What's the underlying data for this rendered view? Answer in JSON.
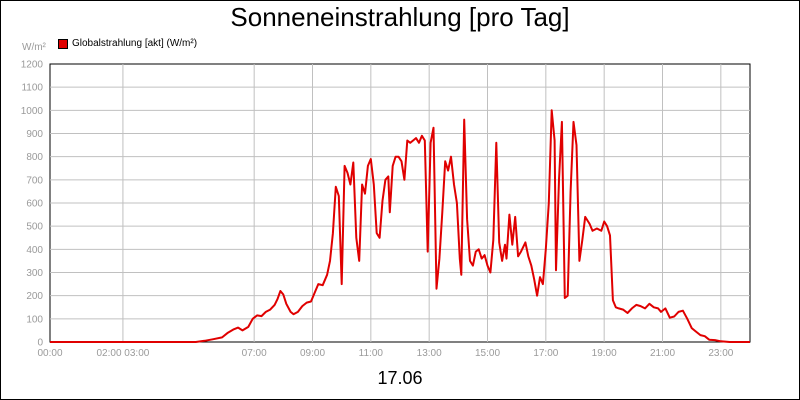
{
  "chart_data": {
    "type": "line",
    "title": "Sonneneinstrahlung [pro Tag]",
    "ylabel": "W/m²",
    "xlabel": "17.06",
    "ylim": [
      0,
      1200
    ],
    "xlim": [
      0,
      24
    ],
    "yticks": [
      0,
      100,
      200,
      300,
      400,
      500,
      600,
      700,
      800,
      900,
      1000,
      1100,
      1200
    ],
    "xticks": [
      {
        "h": 0,
        "label": "00:00"
      },
      {
        "h": 2.5,
        "label": "02:00 03:00"
      },
      {
        "h": 7,
        "label": "07:00"
      },
      {
        "h": 9,
        "label": "09:00"
      },
      {
        "h": 11,
        "label": "11:00"
      },
      {
        "h": 13,
        "label": "13:00"
      },
      {
        "h": 15,
        "label": "15:00"
      },
      {
        "h": 17,
        "label": "17:00"
      },
      {
        "h": 19,
        "label": "19:00"
      },
      {
        "h": 21,
        "label": "21:00"
      },
      {
        "h": 23,
        "label": "23:00"
      }
    ],
    "grid": true,
    "legend_position": "top-left",
    "series": [
      {
        "name": "Globalstrahlung [akt] (W/m²)",
        "color": "#e00000",
        "points": [
          [
            0,
            0
          ],
          [
            5.0,
            0
          ],
          [
            5.3,
            5
          ],
          [
            5.6,
            12
          ],
          [
            5.9,
            20
          ],
          [
            6.1,
            40
          ],
          [
            6.3,
            55
          ],
          [
            6.45,
            62
          ],
          [
            6.6,
            50
          ],
          [
            6.8,
            65
          ],
          [
            6.95,
            100
          ],
          [
            7.1,
            115
          ],
          [
            7.25,
            112
          ],
          [
            7.4,
            130
          ],
          [
            7.55,
            140
          ],
          [
            7.7,
            160
          ],
          [
            7.8,
            185
          ],
          [
            7.9,
            220
          ],
          [
            8.0,
            205
          ],
          [
            8.1,
            165
          ],
          [
            8.25,
            130
          ],
          [
            8.35,
            120
          ],
          [
            8.5,
            130
          ],
          [
            8.65,
            155
          ],
          [
            8.8,
            170
          ],
          [
            8.95,
            175
          ],
          [
            9.1,
            220
          ],
          [
            9.2,
            250
          ],
          [
            9.35,
            245
          ],
          [
            9.5,
            290
          ],
          [
            9.6,
            350
          ],
          [
            9.7,
            470
          ],
          [
            9.8,
            670
          ],
          [
            9.9,
            630
          ],
          [
            10.0,
            250
          ],
          [
            10.1,
            760
          ],
          [
            10.2,
            730
          ],
          [
            10.3,
            680
          ],
          [
            10.4,
            775
          ],
          [
            10.5,
            450
          ],
          [
            10.6,
            350
          ],
          [
            10.7,
            680
          ],
          [
            10.8,
            640
          ],
          [
            10.9,
            760
          ],
          [
            11.0,
            790
          ],
          [
            11.1,
            680
          ],
          [
            11.2,
            470
          ],
          [
            11.3,
            450
          ],
          [
            11.4,
            610
          ],
          [
            11.5,
            700
          ],
          [
            11.6,
            715
          ],
          [
            11.65,
            560
          ],
          [
            11.75,
            760
          ],
          [
            11.85,
            800
          ],
          [
            11.95,
            800
          ],
          [
            12.05,
            780
          ],
          [
            12.15,
            700
          ],
          [
            12.25,
            870
          ],
          [
            12.35,
            860
          ],
          [
            12.45,
            870
          ],
          [
            12.55,
            880
          ],
          [
            12.65,
            860
          ],
          [
            12.75,
            890
          ],
          [
            12.85,
            870
          ],
          [
            12.95,
            390
          ],
          [
            13.05,
            860
          ],
          [
            13.15,
            925
          ],
          [
            13.25,
            230
          ],
          [
            13.35,
            360
          ],
          [
            13.45,
            560
          ],
          [
            13.55,
            780
          ],
          [
            13.65,
            740
          ],
          [
            13.75,
            800
          ],
          [
            13.85,
            680
          ],
          [
            13.95,
            600
          ],
          [
            14.05,
            360
          ],
          [
            14.1,
            290
          ],
          [
            14.2,
            960
          ],
          [
            14.3,
            530
          ],
          [
            14.4,
            350
          ],
          [
            14.5,
            330
          ],
          [
            14.6,
            390
          ],
          [
            14.7,
            400
          ],
          [
            14.8,
            360
          ],
          [
            14.9,
            375
          ],
          [
            15.0,
            330
          ],
          [
            15.1,
            300
          ],
          [
            15.2,
            440
          ],
          [
            15.3,
            860
          ],
          [
            15.4,
            430
          ],
          [
            15.5,
            350
          ],
          [
            15.6,
            420
          ],
          [
            15.65,
            360
          ],
          [
            15.75,
            550
          ],
          [
            15.85,
            420
          ],
          [
            15.95,
            540
          ],
          [
            16.05,
            370
          ],
          [
            16.15,
            390
          ],
          [
            16.3,
            430
          ],
          [
            16.4,
            370
          ],
          [
            16.5,
            330
          ],
          [
            16.6,
            270
          ],
          [
            16.7,
            200
          ],
          [
            16.8,
            280
          ],
          [
            16.9,
            250
          ],
          [
            17.0,
            400
          ],
          [
            17.1,
            600
          ],
          [
            17.2,
            1000
          ],
          [
            17.3,
            870
          ],
          [
            17.35,
            310
          ],
          [
            17.45,
            700
          ],
          [
            17.55,
            950
          ],
          [
            17.65,
            190
          ],
          [
            17.75,
            200
          ],
          [
            17.85,
            650
          ],
          [
            17.95,
            950
          ],
          [
            18.05,
            850
          ],
          [
            18.15,
            350
          ],
          [
            18.25,
            440
          ],
          [
            18.35,
            540
          ],
          [
            18.5,
            510
          ],
          [
            18.6,
            480
          ],
          [
            18.75,
            490
          ],
          [
            18.9,
            480
          ],
          [
            19.0,
            520
          ],
          [
            19.1,
            500
          ],
          [
            19.2,
            460
          ],
          [
            19.3,
            180
          ],
          [
            19.4,
            150
          ],
          [
            19.5,
            145
          ],
          [
            19.65,
            140
          ],
          [
            19.8,
            125
          ],
          [
            19.95,
            145
          ],
          [
            20.1,
            160
          ],
          [
            20.25,
            155
          ],
          [
            20.4,
            145
          ],
          [
            20.55,
            165
          ],
          [
            20.7,
            150
          ],
          [
            20.85,
            145
          ],
          [
            20.95,
            130
          ],
          [
            21.1,
            145
          ],
          [
            21.25,
            105
          ],
          [
            21.4,
            110
          ],
          [
            21.55,
            130
          ],
          [
            21.7,
            135
          ],
          [
            21.85,
            100
          ],
          [
            22.0,
            60
          ],
          [
            22.15,
            45
          ],
          [
            22.3,
            30
          ],
          [
            22.45,
            25
          ],
          [
            22.6,
            10
          ],
          [
            22.8,
            8
          ],
          [
            23.0,
            3
          ],
          [
            23.3,
            0
          ],
          [
            24.0,
            0
          ]
        ]
      }
    ]
  }
}
